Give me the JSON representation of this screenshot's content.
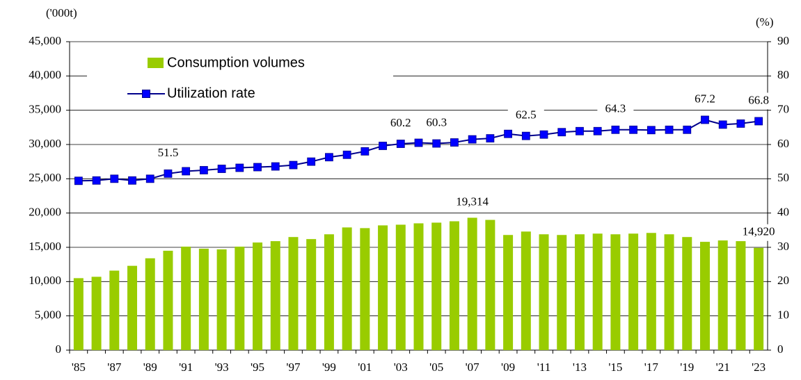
{
  "chart_data": {
    "type": "bar_line",
    "y_label": "('000t)",
    "y2_label": "(%)",
    "categories": [
      "'85",
      null,
      "'87",
      null,
      "'89",
      null,
      "'91",
      null,
      "'93",
      null,
      "'95",
      null,
      "'97",
      null,
      "'99",
      null,
      "'01",
      null,
      "'03",
      null,
      "'05",
      null,
      "'07",
      null,
      "'09",
      null,
      "'11",
      null,
      "'13",
      null,
      "'15",
      null,
      "'17",
      null,
      "'19",
      null,
      "'21",
      null,
      "'23"
    ],
    "series": [
      {
        "name": "Consumption volumes",
        "color": "#99cc00",
        "type": "bar",
        "values": [
          10500,
          10700,
          11600,
          12300,
          13400,
          14500,
          15100,
          14800,
          14700,
          15100,
          15700,
          15900,
          16500,
          16200,
          16900,
          17900,
          17800,
          18200,
          18300,
          18500,
          18600,
          18800,
          19314,
          19000,
          16800,
          17300,
          16900,
          16800,
          16900,
          17000,
          16900,
          17000,
          17100,
          16900,
          16500,
          15800,
          16000,
          15900,
          14920
        ],
        "value_labels": [
          null,
          null,
          null,
          null,
          null,
          null,
          null,
          null,
          null,
          null,
          null,
          null,
          null,
          null,
          null,
          null,
          null,
          null,
          null,
          null,
          null,
          null,
          "19,314",
          null,
          null,
          null,
          null,
          null,
          null,
          null,
          null,
          null,
          null,
          null,
          null,
          null,
          null,
          null,
          "14,920"
        ]
      },
      {
        "name": "Utilization rate",
        "color": "#0000ff",
        "line_color": "#00008b",
        "type": "line",
        "axis": "y2",
        "values": [
          49.4,
          49.5,
          50.0,
          49.5,
          50.0,
          51.5,
          52.2,
          52.5,
          52.9,
          53.2,
          53.4,
          53.6,
          54.0,
          55.0,
          56.3,
          57.0,
          58.0,
          59.6,
          60.2,
          60.5,
          60.3,
          60.6,
          61.5,
          61.8,
          63.1,
          62.5,
          62.9,
          63.6,
          63.9,
          63.9,
          64.3,
          64.3,
          64.2,
          64.3,
          64.3,
          67.2,
          65.8,
          66.1,
          66.8
        ],
        "value_labels": [
          null,
          null,
          null,
          null,
          null,
          "51.5",
          null,
          null,
          null,
          null,
          null,
          null,
          null,
          null,
          null,
          null,
          null,
          null,
          "60.2",
          null,
          "60.3",
          null,
          null,
          null,
          null,
          "62.5",
          null,
          null,
          null,
          null,
          "64.3",
          null,
          null,
          null,
          null,
          "67.2",
          null,
          null,
          "66.8"
        ]
      }
    ],
    "ylim": [
      0,
      45000
    ],
    "yticks": [
      {
        "value": 0,
        "label": "0"
      },
      {
        "value": 5000,
        "label": "5,000"
      },
      {
        "value": 10000,
        "label": "10,000"
      },
      {
        "value": 15000,
        "label": "15,000"
      },
      {
        "value": 20000,
        "label": "20,000"
      },
      {
        "value": 25000,
        "label": "25,000"
      },
      {
        "value": 30000,
        "label": "30,000"
      },
      {
        "value": 35000,
        "label": "35,000"
      },
      {
        "value": 40000,
        "label": "40,000"
      },
      {
        "value": 45000,
        "label": "45,000"
      }
    ],
    "y2lim": [
      0,
      90
    ],
    "y2ticks": [
      0,
      10,
      20,
      30,
      40,
      50,
      60,
      70,
      80,
      90
    ],
    "grid": true,
    "legend": "upper left"
  }
}
